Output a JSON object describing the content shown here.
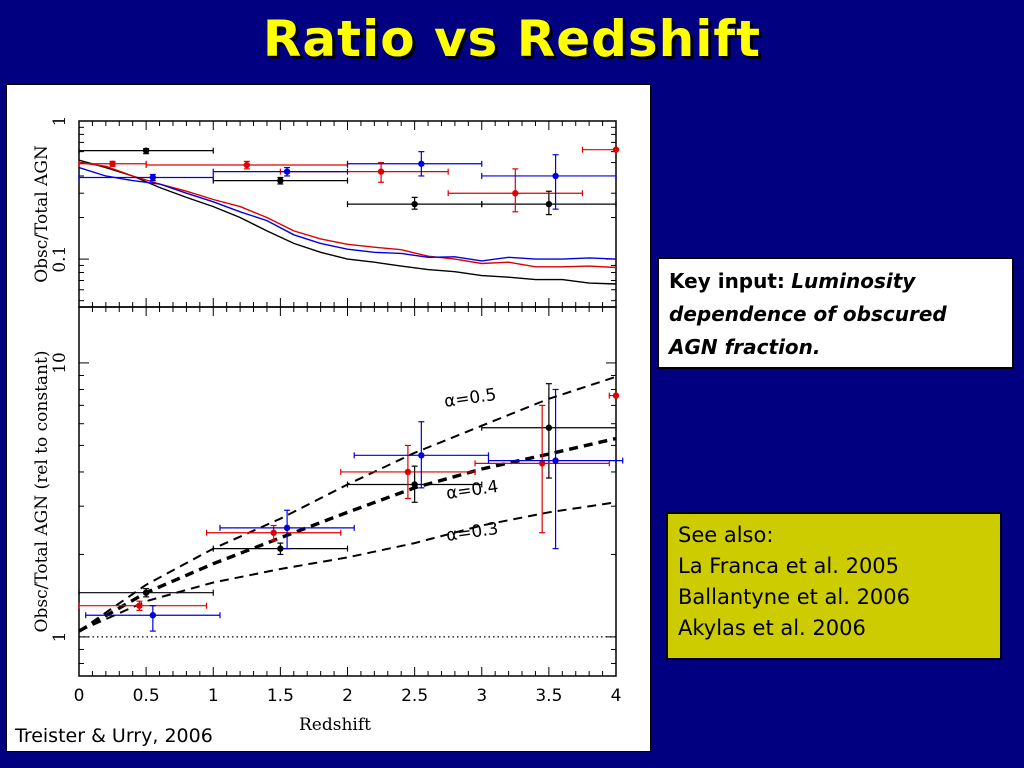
{
  "slide": {
    "title": "Ratio vs Redshift",
    "credit": "Treister & Urry, 2006",
    "background": "#000080",
    "title_color": "#ffff00"
  },
  "key_input": {
    "label": "Key input:",
    "text": "Luminosity dependence of obscured AGN fraction."
  },
  "see_also": {
    "heading": "See also:",
    "references": [
      "La Franca et al. 2005",
      "Ballantyne et al. 2006",
      "Akylas et al. 2006"
    ],
    "box_color": "#cccc00"
  },
  "chart_data": [
    {
      "type": "line",
      "panel": "top",
      "xlabel": "",
      "ylabel": "Obsc/Total AGN",
      "yscale": "log",
      "xlim": [
        0,
        4
      ],
      "ylim": [
        0.045,
        1
      ],
      "yticks": [
        {
          "value": 1,
          "label": "1"
        },
        {
          "value": 0.1,
          "label": "0.1"
        }
      ],
      "series": [
        {
          "color": "#000000",
          "kind": "line",
          "points": [
            [
              0,
              0.52
            ],
            [
              0.2,
              0.46
            ],
            [
              0.4,
              0.4
            ],
            [
              0.6,
              0.33
            ],
            [
              0.8,
              0.28
            ],
            [
              1.0,
              0.24
            ],
            [
              1.2,
              0.2
            ],
            [
              1.4,
              0.16
            ],
            [
              1.6,
              0.13
            ],
            [
              1.8,
              0.112
            ],
            [
              2.0,
              0.1
            ],
            [
              2.2,
              0.095
            ],
            [
              2.4,
              0.089
            ],
            [
              2.6,
              0.084
            ],
            [
              2.8,
              0.081
            ],
            [
              3.0,
              0.076
            ],
            [
              3.2,
              0.074
            ],
            [
              3.4,
              0.071
            ],
            [
              3.6,
              0.071
            ],
            [
              3.8,
              0.067
            ],
            [
              4.0,
              0.066
            ]
          ]
        },
        {
          "color": "#e00000",
          "kind": "line",
          "points": [
            [
              0,
              0.5
            ],
            [
              0.2,
              0.47
            ],
            [
              0.4,
              0.4
            ],
            [
              0.6,
              0.35
            ],
            [
              0.8,
              0.31
            ],
            [
              1.0,
              0.27
            ],
            [
              1.2,
              0.24
            ],
            [
              1.4,
              0.2
            ],
            [
              1.6,
              0.16
            ],
            [
              1.8,
              0.14
            ],
            [
              2.0,
              0.128
            ],
            [
              2.2,
              0.122
            ],
            [
              2.4,
              0.117
            ],
            [
              2.6,
              0.105
            ],
            [
              2.8,
              0.1
            ],
            [
              3.0,
              0.093
            ],
            [
              3.2,
              0.095
            ],
            [
              3.4,
              0.088
            ],
            [
              3.6,
              0.088
            ],
            [
              3.8,
              0.089
            ],
            [
              4.0,
              0.087
            ]
          ]
        },
        {
          "color": "#0000e0",
          "kind": "line",
          "points": [
            [
              0,
              0.46
            ],
            [
              0.2,
              0.4
            ],
            [
              0.4,
              0.37
            ],
            [
              0.6,
              0.35
            ],
            [
              0.8,
              0.3
            ],
            [
              1.0,
              0.26
            ],
            [
              1.2,
              0.22
            ],
            [
              1.4,
              0.19
            ],
            [
              1.6,
              0.15
            ],
            [
              1.8,
              0.13
            ],
            [
              2.0,
              0.118
            ],
            [
              2.2,
              0.112
            ],
            [
              2.4,
              0.11
            ],
            [
              2.6,
              0.103
            ],
            [
              2.8,
              0.104
            ],
            [
              3.0,
              0.097
            ],
            [
              3.2,
              0.103
            ],
            [
              3.4,
              0.1
            ],
            [
              3.6,
              0.1
            ],
            [
              3.8,
              0.102
            ],
            [
              4.0,
              0.1
            ]
          ]
        },
        {
          "color": "#000000",
          "kind": "points",
          "points": [
            [
              0.5,
              0.61,
              0.0,
              1.0,
              0.58,
              0.63
            ],
            [
              1.5,
              0.37,
              1.0,
              2.0,
              0.35,
              0.39
            ],
            [
              2.5,
              0.25,
              2.0,
              3.0,
              0.23,
              0.28
            ],
            [
              3.5,
              0.25,
              3.0,
              4.0,
              0.21,
              0.31
            ]
          ]
        },
        {
          "color": "#e00000",
          "kind": "points",
          "points": [
            [
              0.25,
              0.49,
              0.0,
              0.5,
              0.47,
              0.51
            ],
            [
              1.25,
              0.48,
              0.5,
              2.0,
              0.45,
              0.51
            ],
            [
              2.25,
              0.43,
              1.5,
              2.75,
              0.36,
              0.5
            ],
            [
              3.25,
              0.3,
              2.75,
              3.75,
              0.22,
              0.45
            ],
            [
              4.0,
              0.62,
              3.75,
              4.0,
              0.62,
              0.62
            ]
          ]
        },
        {
          "color": "#0000e0",
          "kind": "points",
          "points": [
            [
              0.55,
              0.39,
              0.0,
              1.0,
              0.37,
              0.41
            ],
            [
              1.55,
              0.43,
              1.0,
              2.0,
              0.4,
              0.46
            ],
            [
              2.55,
              0.49,
              2.0,
              3.0,
              0.4,
              0.6
            ],
            [
              3.55,
              0.4,
              3.0,
              4.0,
              0.23,
              0.57
            ]
          ]
        }
      ]
    },
    {
      "type": "line",
      "panel": "bottom",
      "xlabel": "Redshift",
      "ylabel": "Obsc/Total AGN (rel to constant)",
      "yscale": "log",
      "xlim": [
        0,
        4
      ],
      "ylim": [
        0.72,
        16
      ],
      "xticks": [
        "0",
        "0.5",
        "1",
        "1.5",
        "2",
        "2.5",
        "3",
        "3.5",
        "4"
      ],
      "yticks": [
        {
          "value": 1,
          "label": "1"
        },
        {
          "value": 10,
          "label": "10"
        }
      ],
      "annotations": [
        "α=0.5",
        "α=0.4",
        "α=0.3"
      ],
      "series": [
        {
          "color": "#000000",
          "kind": "dotted",
          "points": [
            [
              0,
              1
            ],
            [
              4,
              1
            ]
          ]
        },
        {
          "color": "#000000",
          "kind": "dashed",
          "label": "α=0.5",
          "points": [
            [
              0,
              1.05
            ],
            [
              0.5,
              1.55
            ],
            [
              1.0,
              2.1
            ],
            [
              1.5,
              2.7
            ],
            [
              2.0,
              3.6
            ],
            [
              2.5,
              4.7
            ],
            [
              3.0,
              5.9
            ],
            [
              3.5,
              7.4
            ],
            [
              4.0,
              8.9
            ]
          ]
        },
        {
          "color": "#000000",
          "kind": "dashed-bold",
          "label": "α=0.4",
          "points": [
            [
              0,
              1.05
            ],
            [
              0.5,
              1.45
            ],
            [
              1.0,
              1.85
            ],
            [
              1.5,
              2.3
            ],
            [
              2.0,
              2.85
            ],
            [
              2.5,
              3.5
            ],
            [
              3.0,
              4.1
            ],
            [
              3.5,
              4.65
            ],
            [
              4.0,
              5.3
            ]
          ]
        },
        {
          "color": "#000000",
          "kind": "dashed",
          "label": "α=0.3",
          "points": [
            [
              0,
              1.05
            ],
            [
              0.5,
              1.35
            ],
            [
              1.0,
              1.58
            ],
            [
              1.5,
              1.77
            ],
            [
              2.0,
              1.95
            ],
            [
              2.5,
              2.2
            ],
            [
              3.0,
              2.55
            ],
            [
              3.5,
              2.85
            ],
            [
              4.0,
              3.1
            ]
          ]
        },
        {
          "color": "#000000",
          "kind": "points",
          "points": [
            [
              0.5,
              1.45,
              0.0,
              1.0,
              1.4,
              1.5
            ],
            [
              1.5,
              2.1,
              1.0,
              2.0,
              2.0,
              2.2
            ],
            [
              2.5,
              3.6,
              2.0,
              3.0,
              3.1,
              4.2
            ],
            [
              3.5,
              5.8,
              3.0,
              4.0,
              3.8,
              8.4
            ]
          ]
        },
        {
          "color": "#e00000",
          "kind": "points",
          "points": [
            [
              0.45,
              1.3,
              0.0,
              0.95,
              1.25,
              1.35
            ],
            [
              1.45,
              2.4,
              0.95,
              1.95,
              2.25,
              2.55
            ],
            [
              2.45,
              4.0,
              1.95,
              2.95,
              3.2,
              5.0
            ],
            [
              3.45,
              4.3,
              2.95,
              3.95,
              2.4,
              7.0
            ],
            [
              4.0,
              7.6,
              3.95,
              4.0,
              7.6,
              7.6
            ]
          ]
        },
        {
          "color": "#0000e0",
          "kind": "points",
          "points": [
            [
              0.55,
              1.2,
              0.05,
              1.05,
              1.05,
              1.3
            ],
            [
              1.55,
              2.5,
              1.05,
              2.05,
              2.1,
              2.9
            ],
            [
              2.55,
              4.6,
              2.05,
              3.05,
              3.5,
              6.1
            ],
            [
              3.55,
              4.4,
              3.05,
              4.05,
              2.1,
              8.0
            ]
          ]
        }
      ]
    }
  ]
}
